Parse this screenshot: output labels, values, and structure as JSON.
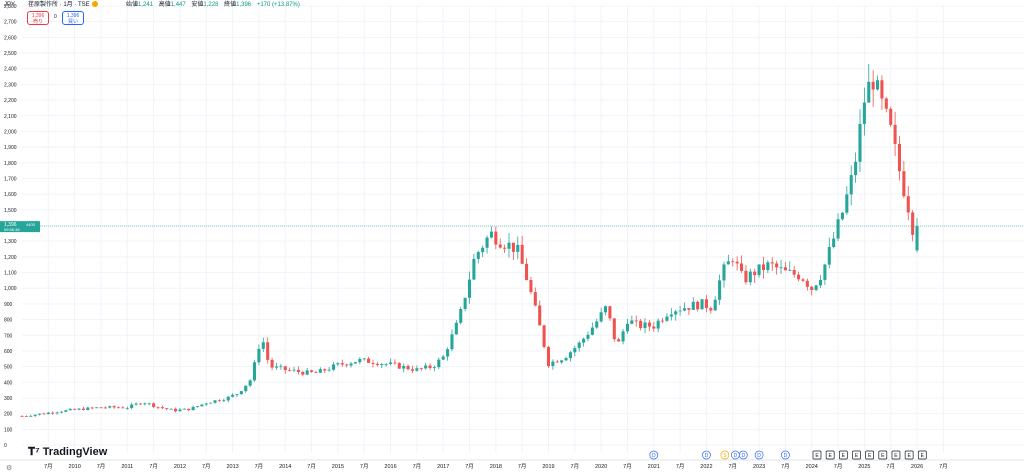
{
  "header": {
    "currency": "JPY",
    "symbol": "荏原製作所 · 1月 · TSE",
    "ohlc": {
      "open_label": "始値",
      "open": "1,241",
      "high_label": "高値",
      "high": "1,447",
      "low_label": "安値",
      "low": "1,228",
      "close_label": "終値",
      "close": "1,396",
      "change": "+170 (+13.87%)"
    }
  },
  "trade": {
    "sell_price": "1,396",
    "sell_label": "売り",
    "spread": "0",
    "buy_price": "1,396",
    "buy_label": "買い"
  },
  "price_tag": {
    "price": "1,396",
    "countdown": "09:56:38",
    "label": "4403"
  },
  "logo_text": "TradingView",
  "colors": {
    "up": "#26a69a",
    "down": "#ef5350",
    "grid": "#f0f3fa"
  },
  "chart_data": {
    "type": "candlestick",
    "title": "",
    "ylim": [
      0,
      2800
    ],
    "yticks": [
      0,
      100,
      200,
      300,
      400,
      500,
      600,
      700,
      800,
      900,
      1000,
      1100,
      1200,
      1300,
      1400,
      1500,
      1600,
      1700,
      1800,
      1900,
      2000,
      2100,
      2200,
      2300,
      2400,
      2500,
      2600,
      2700,
      2800
    ],
    "xlim": [
      2009.0,
      2027.5
    ],
    "xticks": [
      {
        "t": 2009.5,
        "label": "7月"
      },
      {
        "t": 2010,
        "label": "2010"
      },
      {
        "t": 2010.5,
        "label": "7月"
      },
      {
        "t": 2011,
        "label": "2011"
      },
      {
        "t": 2011.5,
        "label": "7月"
      },
      {
        "t": 2012,
        "label": "2012"
      },
      {
        "t": 2012.5,
        "label": "7月"
      },
      {
        "t": 2013,
        "label": "2013"
      },
      {
        "t": 2013.5,
        "label": "7月"
      },
      {
        "t": 2014,
        "label": "2014"
      },
      {
        "t": 2014.5,
        "label": "7月"
      },
      {
        "t": 2015,
        "label": "2015"
      },
      {
        "t": 2015.5,
        "label": "7月"
      },
      {
        "t": 2016,
        "label": "2016"
      },
      {
        "t": 2016.5,
        "label": "7月"
      },
      {
        "t": 2017,
        "label": "2017"
      },
      {
        "t": 2017.5,
        "label": "7月"
      },
      {
        "t": 2018,
        "label": "2018"
      },
      {
        "t": 2018.5,
        "label": "7月"
      },
      {
        "t": 2019,
        "label": "2019"
      },
      {
        "t": 2019.5,
        "label": "7月"
      },
      {
        "t": 2020,
        "label": "2020"
      },
      {
        "t": 2020.5,
        "label": "7月"
      },
      {
        "t": 2021,
        "label": "2021"
      },
      {
        "t": 2021.5,
        "label": "7月"
      },
      {
        "t": 2022,
        "label": "2022"
      },
      {
        "t": 2022.5,
        "label": "7月"
      },
      {
        "t": 2023,
        "label": "2023"
      },
      {
        "t": 2023.5,
        "label": "7月"
      },
      {
        "t": 2024,
        "label": "2024"
      },
      {
        "t": 2024.5,
        "label": "7月"
      },
      {
        "t": 2025,
        "label": "2025"
      },
      {
        "t": 2025.5,
        "label": "7月"
      },
      {
        "t": 2026,
        "label": "2026"
      },
      {
        "t": 2026.5,
        "label": "7月"
      }
    ],
    "anchors": [
      [
        2009.0,
        185
      ],
      [
        2009.4,
        200
      ],
      [
        2009.7,
        215
      ],
      [
        2010.0,
        225
      ],
      [
        2010.5,
        240
      ],
      [
        2011.0,
        240
      ],
      [
        2011.3,
        275
      ],
      [
        2011.6,
        240
      ],
      [
        2011.9,
        220
      ],
      [
        2012.2,
        230
      ],
      [
        2012.5,
        270
      ],
      [
        2012.9,
        300
      ],
      [
        2013.1,
        330
      ],
      [
        2013.35,
        420
      ],
      [
        2013.55,
        700
      ],
      [
        2013.7,
        500
      ],
      [
        2014.0,
        480
      ],
      [
        2014.4,
        460
      ],
      [
        2014.6,
        460
      ],
      [
        2015.0,
        510
      ],
      [
        2015.4,
        540
      ],
      [
        2015.7,
        530
      ],
      [
        2016.2,
        500
      ],
      [
        2016.5,
        480
      ],
      [
        2016.8,
        500
      ],
      [
        2017.0,
        560
      ],
      [
        2017.3,
        800
      ],
      [
        2017.6,
        1200
      ],
      [
        2017.9,
        1350
      ],
      [
        2018.1,
        1300
      ],
      [
        2018.4,
        1250
      ],
      [
        2018.6,
        1050
      ],
      [
        2018.8,
        800
      ],
      [
        2019.0,
        520
      ],
      [
        2019.3,
        560
      ],
      [
        2019.6,
        650
      ],
      [
        2019.9,
        780
      ],
      [
        2020.1,
        880
      ],
      [
        2020.3,
        620
      ],
      [
        2020.5,
        800
      ],
      [
        2020.7,
        760
      ],
      [
        2021.0,
        760
      ],
      [
        2021.3,
        860
      ],
      [
        2021.6,
        880
      ],
      [
        2021.9,
        900
      ],
      [
        2022.1,
        880
      ],
      [
        2022.3,
        1100
      ],
      [
        2022.5,
        1200
      ],
      [
        2022.7,
        1050
      ],
      [
        2022.9,
        1100
      ],
      [
        2023.2,
        1150
      ],
      [
        2023.5,
        1100
      ],
      [
        2023.8,
        1080
      ],
      [
        2024.0,
        1000
      ],
      [
        2024.2,
        1100
      ],
      [
        2024.4,
        1300
      ],
      [
        2024.6,
        1500
      ],
      [
        2024.8,
        1750
      ],
      [
        2025.0,
        2200
      ],
      [
        2025.15,
        2350
      ],
      [
        2025.35,
        2150
      ],
      [
        2025.5,
        2000
      ],
      [
        2025.7,
        1700
      ],
      [
        2025.85,
        1500
      ],
      [
        2026.0,
        1250
      ],
      [
        2026.08,
        1396
      ]
    ],
    "events": [
      {
        "t": 2021.0,
        "label": "D"
      },
      {
        "t": 2022.0,
        "label": "D"
      },
      {
        "t": 2022.35,
        "label": "S"
      },
      {
        "t": 2022.55,
        "label": "D"
      },
      {
        "t": 2022.7,
        "label": "D"
      },
      {
        "t": 2023.0,
        "label": "D"
      },
      {
        "t": 2023.5,
        "label": "D"
      },
      {
        "t": 2024.1,
        "label": "E"
      },
      {
        "t": 2024.35,
        "label": "E"
      },
      {
        "t": 2024.6,
        "label": "E"
      },
      {
        "t": 2024.85,
        "label": "E"
      },
      {
        "t": 2025.1,
        "label": "E"
      },
      {
        "t": 2025.35,
        "label": "E"
      },
      {
        "t": 2025.6,
        "label": "E"
      },
      {
        "t": 2025.85,
        "label": "E"
      },
      {
        "t": 2026.1,
        "label": "E"
      }
    ]
  }
}
